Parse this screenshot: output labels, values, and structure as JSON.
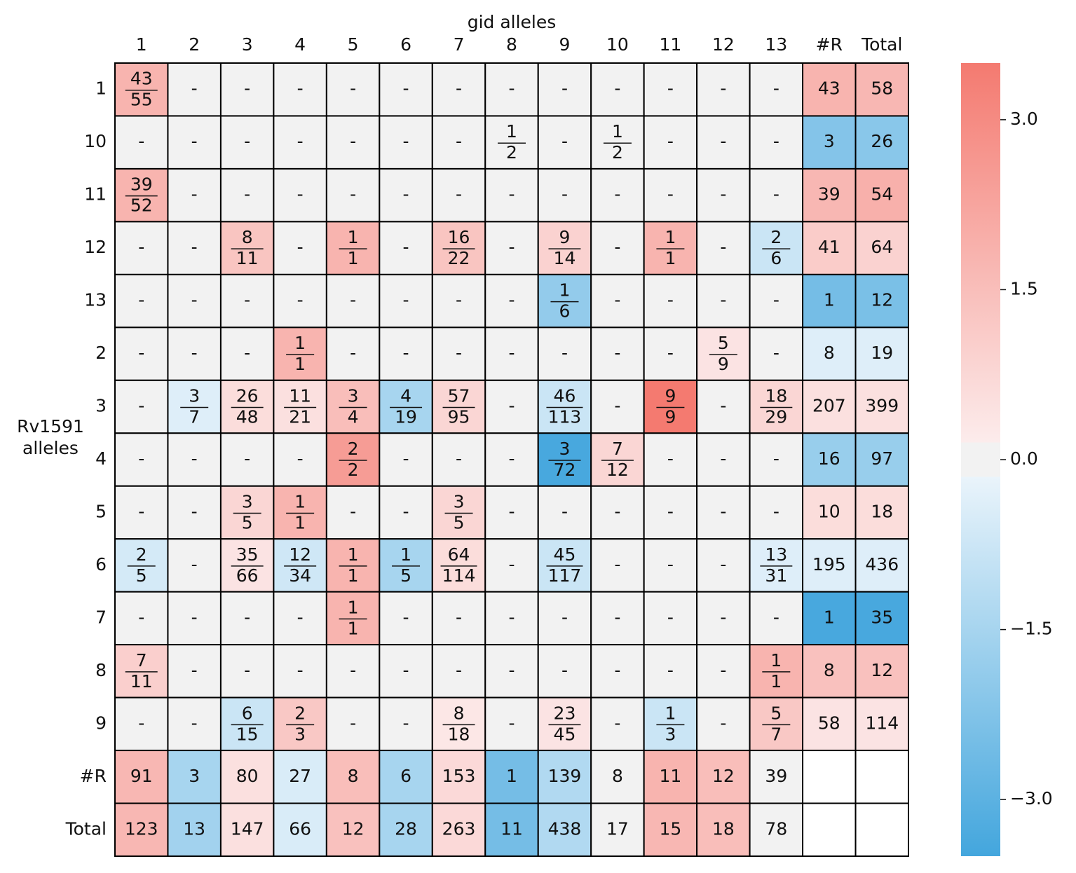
{
  "chart_data": {
    "type": "heatmap",
    "xlabel": "gid alleles",
    "ylabel": [
      "Rv1591",
      "alleles"
    ],
    "x_categories": [
      "1",
      "2",
      "3",
      "4",
      "5",
      "6",
      "7",
      "8",
      "9",
      "10",
      "11",
      "12",
      "13",
      "#R",
      "Total"
    ],
    "y_categories": [
      "1",
      "10",
      "11",
      "12",
      "13",
      "2",
      "3",
      "4",
      "5",
      "6",
      "7",
      "8",
      "9",
      "#R",
      "Total"
    ],
    "cells": [
      [
        [
          43,
          55
        ],
        "-",
        "-",
        "-",
        "-",
        "-",
        "-",
        "-",
        "-",
        "-",
        "-",
        "-",
        "-",
        43,
        58
      ],
      [
        "-",
        "-",
        "-",
        "-",
        "-",
        "-",
        "-",
        [
          1,
          2
        ],
        "-",
        [
          1,
          2
        ],
        "-",
        "-",
        "-",
        3,
        26
      ],
      [
        [
          39,
          52
        ],
        "-",
        "-",
        "-",
        "-",
        "-",
        "-",
        "-",
        "-",
        "-",
        "-",
        "-",
        "-",
        39,
        54
      ],
      [
        "-",
        "-",
        [
          8,
          11
        ],
        "-",
        [
          1,
          1
        ],
        "-",
        [
          16,
          22
        ],
        "-",
        [
          9,
          14
        ],
        "-",
        [
          1,
          1
        ],
        "-",
        [
          2,
          6
        ],
        41,
        64
      ],
      [
        "-",
        "-",
        "-",
        "-",
        "-",
        "-",
        "-",
        "-",
        [
          1,
          6
        ],
        "-",
        "-",
        "-",
        "-",
        1,
        12
      ],
      [
        "-",
        "-",
        "-",
        [
          1,
          1
        ],
        "-",
        "-",
        "-",
        "-",
        "-",
        "-",
        "-",
        [
          5,
          9
        ],
        "-",
        8,
        19
      ],
      [
        "-",
        [
          3,
          7
        ],
        [
          26,
          48
        ],
        [
          11,
          21
        ],
        [
          3,
          4
        ],
        [
          4,
          19
        ],
        [
          57,
          95
        ],
        "-",
        [
          46,
          113
        ],
        "-",
        [
          9,
          9
        ],
        "-",
        [
          18,
          29
        ],
        207,
        399
      ],
      [
        "-",
        "-",
        "-",
        "-",
        [
          2,
          2
        ],
        "-",
        "-",
        "-",
        [
          3,
          72
        ],
        [
          7,
          12
        ],
        "-",
        "-",
        "-",
        16,
        97
      ],
      [
        "-",
        "-",
        [
          3,
          5
        ],
        [
          1,
          1
        ],
        "-",
        "-",
        [
          3,
          5
        ],
        "-",
        "-",
        "-",
        "-",
        "-",
        "-",
        10,
        18
      ],
      [
        [
          2,
          5
        ],
        "-",
        [
          35,
          66
        ],
        [
          12,
          34
        ],
        [
          1,
          1
        ],
        [
          1,
          5
        ],
        [
          64,
          114
        ],
        "-",
        [
          45,
          117
        ],
        "-",
        "-",
        "-",
        [
          13,
          31
        ],
        195,
        436
      ],
      [
        "-",
        "-",
        "-",
        "-",
        [
          1,
          1
        ],
        "-",
        "-",
        "-",
        "-",
        "-",
        "-",
        "-",
        "-",
        1,
        35
      ],
      [
        [
          7,
          11
        ],
        "-",
        "-",
        "-",
        "-",
        "-",
        "-",
        "-",
        "-",
        "-",
        "-",
        "-",
        [
          1,
          1
        ],
        8,
        12
      ],
      [
        "-",
        "-",
        [
          6,
          15
        ],
        [
          2,
          3
        ],
        "-",
        "-",
        [
          8,
          18
        ],
        "-",
        [
          23,
          45
        ],
        "-",
        [
          1,
          3
        ],
        "-",
        [
          5,
          7
        ],
        58,
        114
      ],
      [
        91,
        3,
        80,
        27,
        8,
        6,
        153,
        1,
        139,
        8,
        11,
        12,
        39,
        null,
        null
      ],
      [
        123,
        13,
        147,
        66,
        12,
        28,
        263,
        11,
        438,
        17,
        15,
        18,
        78,
        null,
        null
      ]
    ],
    "values": [
      [
        1.8,
        0,
        0,
        0,
        0,
        0,
        0,
        0,
        0,
        0,
        0,
        0,
        0,
        1.8,
        1.7
      ],
      [
        0,
        0,
        0,
        0,
        0,
        0,
        0,
        0,
        0,
        0,
        0,
        0,
        0,
        -2.2,
        -2.1
      ],
      [
        1.8,
        0,
        0,
        0,
        0,
        0,
        0,
        0,
        0,
        0,
        0,
        0,
        0,
        1.7,
        1.9
      ],
      [
        0,
        0,
        1.3,
        0,
        1.8,
        0,
        1.3,
        0,
        0.9,
        0,
        1.8,
        0,
        -0.8,
        1.1,
        0.9
      ],
      [
        0,
        0,
        0,
        0,
        0,
        0,
        0,
        0,
        -1.9,
        0,
        0,
        0,
        0,
        -2.5,
        -2.4
      ],
      [
        0,
        0,
        0,
        1.8,
        0,
        0,
        0,
        0,
        0,
        0,
        0,
        0.4,
        0,
        -0.4,
        -0.4
      ],
      [
        0,
        -0.4,
        0.6,
        0.5,
        1.5,
        -1.5,
        0.8,
        0,
        -0.8,
        0,
        3.5,
        0,
        0.8,
        0.5,
        0.5
      ],
      [
        0,
        0,
        0,
        0,
        2.5,
        0,
        0,
        0,
        -3.4,
        0.8,
        0,
        0,
        0,
        -1.8,
        -1.8
      ],
      [
        0,
        0,
        0.8,
        1.8,
        0,
        0,
        0.8,
        0,
        0,
        0,
        0,
        0,
        0,
        0.6,
        0.6
      ],
      [
        -0.6,
        0,
        0.4,
        -0.7,
        1.8,
        -1.5,
        0.6,
        0,
        -0.8,
        0,
        0,
        0,
        -0.4,
        -0.4,
        -0.4
      ],
      [
        0,
        0,
        0,
        0,
        1.8,
        0,
        0,
        0,
        0,
        0,
        0,
        0,
        0,
        -3.4,
        -3.4
      ],
      [
        1.0,
        0,
        0,
        0,
        0,
        0,
        0,
        0,
        0,
        0,
        0,
        0,
        1.8,
        1.4,
        1.4
      ],
      [
        0,
        0,
        -0.8,
        1.2,
        0,
        0,
        0.3,
        0,
        0.4,
        0,
        -0.8,
        0,
        1.2,
        0.4,
        0.4
      ],
      [
        1.7,
        -1.5,
        0.5,
        -0.5,
        1.5,
        -1.5,
        0.7,
        -2.5,
        -1.3,
        0,
        1.8,
        1.5,
        0,
        null,
        null
      ],
      [
        1.7,
        -1.6,
        0.5,
        -0.5,
        1.4,
        -1.5,
        0.7,
        -2.5,
        -1.3,
        0,
        1.7,
        1.5,
        0,
        null,
        null
      ]
    ],
    "zlim": [
      -3.5,
      3.5
    ],
    "zticks": [
      {
        "value": 3,
        "label": "3.0"
      },
      {
        "value": 1.5,
        "label": "1.5"
      },
      {
        "value": 0,
        "label": "0.0"
      },
      {
        "value": -1.5,
        "label": "−1.5"
      },
      {
        "value": -3,
        "label": "−3.0"
      }
    ],
    "colormap": [
      [
        -3.5,
        "#43a6dd"
      ],
      [
        -0.15,
        "#eaf4fb"
      ],
      [
        -0.15,
        "#f2f2f2"
      ],
      [
        0.15,
        "#f2f2f2"
      ],
      [
        0.15,
        "#fcecec"
      ],
      [
        3.5,
        "#f47a70"
      ]
    ],
    "empty_color": "#ffffff"
  }
}
